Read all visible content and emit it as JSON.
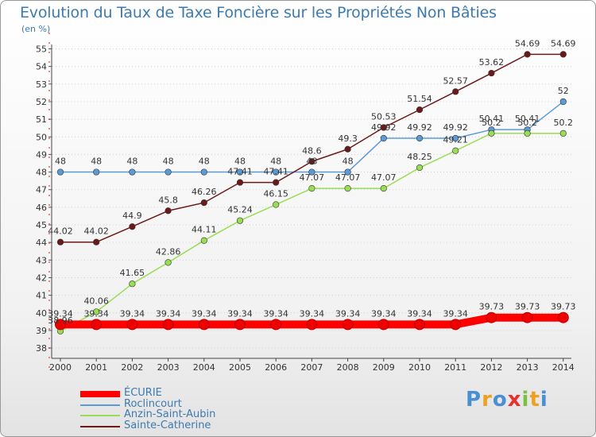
{
  "title": "Evolution du Taux de Taxe Foncière sur les Propriétés Non Bâties",
  "unit_label": "(en %)",
  "logo": "Proxiti",
  "chart_data": {
    "type": "line",
    "title": "Evolution du Taux de Taxe Foncière sur les Propriétés Non Bâties",
    "ylabel": "(en %)",
    "x": [
      "2000",
      "2001",
      "2002",
      "2003",
      "2004",
      "2005",
      "2006",
      "2007",
      "2008",
      "2009",
      "2010",
      "2011",
      "2012",
      "2013",
      "2014"
    ],
    "yticks": [
      "38",
      "39",
      "40",
      "41",
      "42",
      "43",
      "44",
      "45",
      "46",
      "47",
      "48",
      "49",
      "50",
      "51",
      "52",
      "53",
      "54",
      "55"
    ],
    "ylim": [
      38,
      55
    ],
    "grid": "horizontal dotted",
    "legend_position": "bottom-left",
    "series": [
      {
        "name": "ÉCURIE",
        "color": "#ff0000",
        "values": [
          39.34,
          39.34,
          39.34,
          39.34,
          39.34,
          39.34,
          39.34,
          39.34,
          39.34,
          39.34,
          39.34,
          39.34,
          39.73,
          39.73,
          39.73
        ],
        "labels": [
          "39.34",
          "39.34",
          "39.34",
          "39.34",
          "39.34",
          "39.34",
          "39.34",
          "39.34",
          "39.34",
          "39.34",
          "39.34",
          "39.34",
          "39.73",
          "39.73",
          "39.73"
        ]
      },
      {
        "name": "Roclincourt",
        "color": "#5b9bd5",
        "values": [
          48,
          48,
          48,
          48,
          48,
          48,
          48,
          48,
          48,
          49.92,
          49.92,
          49.92,
          50.41,
          50.41,
          52
        ],
        "labels": [
          "48",
          "48",
          "48",
          "48",
          "48",
          "48",
          "48",
          "48",
          "48",
          "49.92",
          "49.92",
          "49.92",
          "50.41",
          "50.41",
          "52"
        ]
      },
      {
        "name": "Anzin-Saint-Aubin",
        "color": "#99dd55",
        "values": [
          38.96,
          40.06,
          41.65,
          42.86,
          44.11,
          45.24,
          46.15,
          47.07,
          47.07,
          47.07,
          48.25,
          49.21,
          50.2,
          50.2,
          50.2
        ],
        "labels": [
          "38.96",
          "40.06",
          "41.65",
          "42.86",
          "44.11",
          "45.24",
          "46.15",
          "47.07",
          "47.07",
          "47.07",
          "48.25",
          "49.21",
          "50.2",
          "50.2",
          "50.2"
        ]
      },
      {
        "name": "Sainte-Catherine",
        "color": "#6b1a1a",
        "values": [
          44.02,
          44.02,
          44.9,
          45.8,
          46.26,
          47.41,
          47.41,
          48.6,
          49.3,
          50.53,
          51.54,
          52.57,
          53.62,
          54.69,
          54.69
        ],
        "labels": [
          "44.02",
          "44.02",
          "44.9",
          "45.8",
          "46.26",
          "47.41",
          "47.41",
          "48.6",
          "49.3",
          "50.53",
          "51.54",
          "52.57",
          "53.62",
          "54.69",
          "54.69"
        ]
      }
    ]
  }
}
